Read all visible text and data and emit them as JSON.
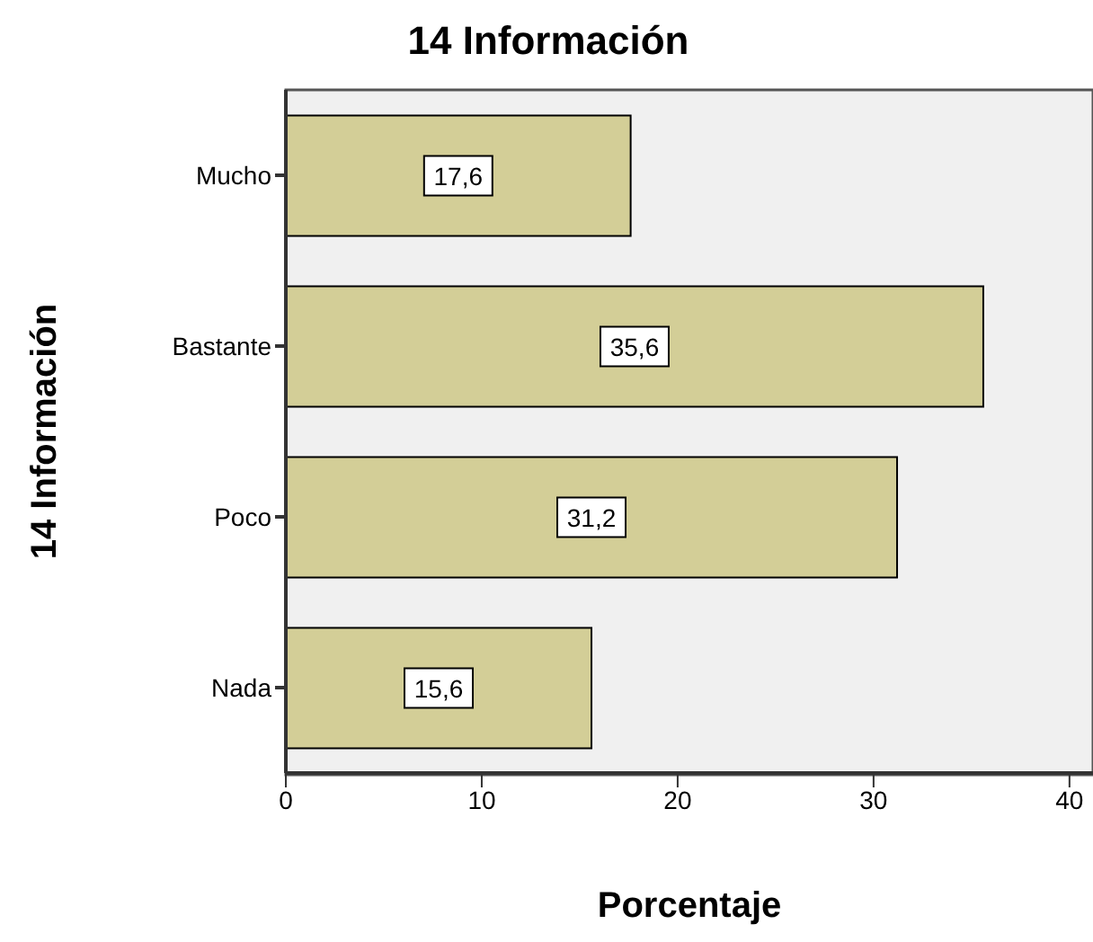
{
  "chart_data": {
    "type": "bar",
    "orientation": "horizontal",
    "title": "14 Información",
    "xlabel": "Porcentaje",
    "ylabel": "14 Información",
    "categories": [
      "Mucho",
      "Bastante",
      "Poco",
      "Nada"
    ],
    "values": [
      17.6,
      35.6,
      31.2,
      15.6
    ],
    "value_labels": [
      "17,6",
      "35,6",
      "31,2",
      "15,6"
    ],
    "color": "#d3ce97",
    "xlim": [
      0,
      41.2
    ],
    "xticks": [
      0,
      10,
      20,
      30,
      40
    ]
  }
}
